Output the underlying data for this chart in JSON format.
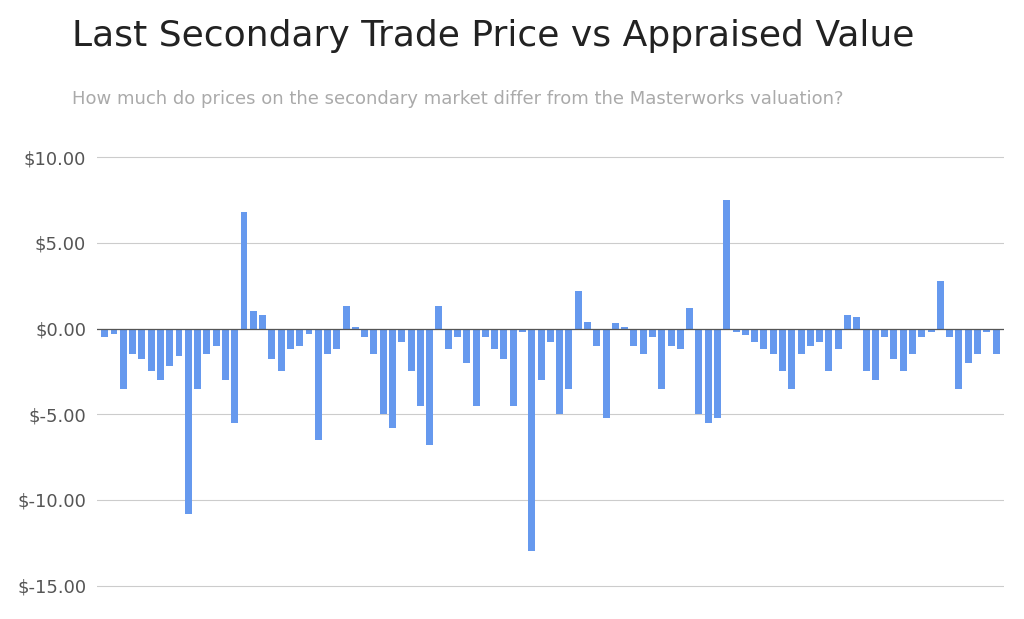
{
  "title": "Last Secondary Trade Price vs Appraised Value",
  "subtitle": "How much do prices on the secondary market differ from the Masterworks valuation?",
  "bar_color": "#6699ee",
  "background_color": "#ffffff",
  "ylim": [
    -15.5,
    10.5
  ],
  "yticks": [
    -15.0,
    -10.0,
    -5.0,
    0.0,
    5.0,
    10.0
  ],
  "title_fontsize": 26,
  "subtitle_fontsize": 13,
  "tick_fontsize": 13,
  "values": [
    -0.5,
    -0.3,
    -3.5,
    -1.5,
    -1.8,
    -2.5,
    -3.0,
    -2.2,
    -1.6,
    -10.8,
    -3.5,
    -1.5,
    -1.0,
    -3.0,
    -5.5,
    6.8,
    1.0,
    0.8,
    -1.8,
    -2.5,
    -1.2,
    -1.0,
    -0.3,
    -6.5,
    -1.5,
    -1.2,
    1.3,
    0.1,
    -0.5,
    -1.5,
    -5.0,
    -5.8,
    -0.8,
    -2.5,
    -4.5,
    -6.8,
    1.3,
    -1.2,
    -0.5,
    -2.0,
    -4.5,
    -0.5,
    -1.2,
    -1.8,
    -4.5,
    -0.2,
    -13.0,
    -3.0,
    -0.8,
    -5.0,
    -3.5,
    2.2,
    0.4,
    -1.0,
    -5.2,
    0.3,
    0.1,
    -1.0,
    -1.5,
    -0.5,
    -3.5,
    -1.0,
    -1.2,
    1.2,
    -5.0,
    -5.5,
    -5.2,
    7.5,
    -0.2,
    -0.4,
    -0.8,
    -1.2,
    -1.5,
    -2.5,
    -3.5,
    -1.5,
    -1.0,
    -0.8,
    -2.5,
    -1.2,
    0.8,
    0.7,
    -2.5,
    -3.0,
    -0.5,
    -1.8,
    -2.5,
    -1.5,
    -0.5,
    -0.2,
    2.8,
    -0.5,
    -3.5,
    -2.0,
    -1.5,
    -0.2,
    -1.5
  ]
}
